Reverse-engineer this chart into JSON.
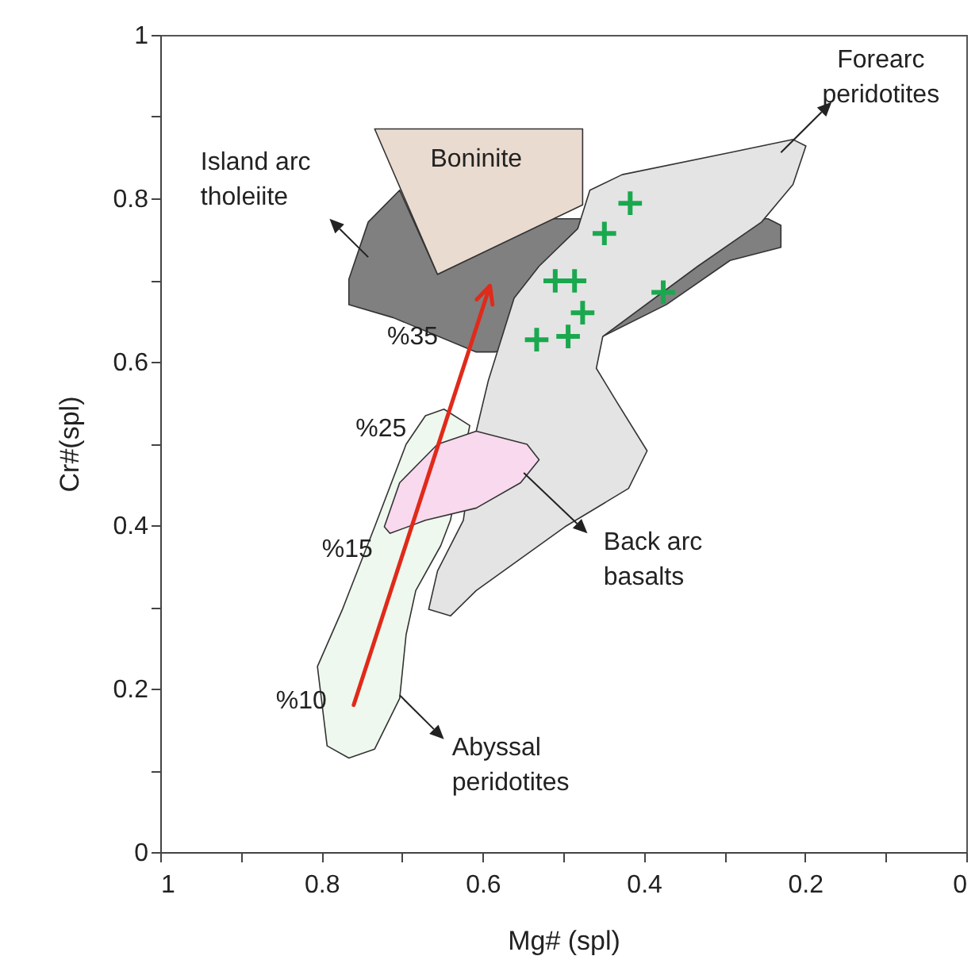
{
  "chart_data": {
    "type": "scatter",
    "xlabel": "Mg# (spl)",
    "ylabel": "Cr#(spl)",
    "xlim": [
      1,
      0
    ],
    "ylim": [
      0,
      1
    ],
    "xticks": [
      1,
      {
        "value": 0.9,
        "label": null
      },
      0.8,
      {
        "value": 0.7,
        "label": null
      },
      0.6,
      {
        "value": 0.5,
        "label": null
      },
      0.4,
      {
        "value": 0.3,
        "label": null
      },
      0.2,
      {
        "value": 0.1,
        "label": null
      },
      0
    ],
    "yticks": [
      0,
      {
        "value": 0.1,
        "label": null
      },
      0.2,
      {
        "value": 0.3,
        "label": null
      },
      0.4,
      {
        "value": 0.5,
        "label": null
      },
      0.6,
      {
        "value": 0.7,
        "label": null
      },
      0.8,
      {
        "value": 0.9,
        "label": null
      },
      1
    ],
    "grid": false,
    "series": [
      {
        "name": "Island arc\ntholeiite",
        "type": "area",
        "color": "#808080",
        "x": [
          0.703,
          0.742,
          0.766,
          0.766,
          0.711,
          0.608,
          0.585,
          0.451,
          0.372,
          0.293,
          0.23,
          0.23,
          0.246,
          0.482,
          0.514,
          0.656
        ],
        "values": [
          0.81,
          0.771,
          0.701,
          0.67,
          0.654,
          0.612,
          0.612,
          0.631,
          0.67,
          0.724,
          0.74,
          0.767,
          0.775,
          0.775,
          0.775,
          0.707
        ]
      },
      {
        "name": "Boninite",
        "type": "area",
        "color": "#eadbd0",
        "x": [
          0.734,
          0.476,
          0.476,
          0.656
        ],
        "values": [
          0.885,
          0.885,
          0.792,
          0.707
        ]
      },
      {
        "name": "Forearc\nperidotites",
        "type": "area",
        "color": "#e4e4e4",
        "x": [
          0.467,
          0.427,
          0.293,
          0.215,
          0.199,
          0.215,
          0.254,
          0.333,
          0.451,
          0.459,
          0.435,
          0.396,
          0.419,
          0.498,
          0.608,
          0.64,
          0.667,
          0.656,
          0.624,
          0.608,
          0.593,
          0.561,
          0.53,
          0.482
        ],
        "values": [
          0.81,
          0.829,
          0.856,
          0.872,
          0.864,
          0.817,
          0.771,
          0.717,
          0.631,
          0.592,
          0.553,
          0.491,
          0.445,
          0.398,
          0.32,
          0.289,
          0.297,
          0.344,
          0.406,
          0.515,
          0.577,
          0.678,
          0.717,
          0.763
        ]
      },
      {
        "name": "Abyssal\nperidotites",
        "type": "area",
        "color": "#eef8ee",
        "x": [
          0.648,
          0.616,
          0.64,
          0.652,
          0.683,
          0.695,
          0.703,
          0.734,
          0.766,
          0.793,
          0.805,
          0.774,
          0.734,
          0.695,
          0.671
        ],
        "values": [
          0.542,
          0.522,
          0.406,
          0.375,
          0.32,
          0.266,
          0.188,
          0.126,
          0.115,
          0.13,
          0.227,
          0.297,
          0.398,
          0.499,
          0.534
        ]
      },
      {
        "name": "Back arc\nbasalts",
        "type": "area",
        "color": "#f9d9ee",
        "x": [
          0.722,
          0.703,
          0.656,
          0.608,
          0.545,
          0.53,
          0.553,
          0.608,
          0.671,
          0.715
        ],
        "values": [
          0.398,
          0.452,
          0.499,
          0.515,
          0.499,
          0.48,
          0.452,
          0.421,
          0.406,
          0.39
        ]
      },
      {
        "type": "scatter",
        "color": "#1aa84f",
        "marker": "cross",
        "x": [
          0.417,
          0.449,
          0.51,
          0.486,
          0.376,
          0.476,
          0.533,
          0.494
        ],
        "values": [
          0.794,
          0.757,
          0.699,
          0.699,
          0.685,
          0.66,
          0.627,
          0.631
        ]
      }
    ],
    "annotations": [
      "%10",
      "%15",
      "%25",
      "%35"
    ]
  }
}
